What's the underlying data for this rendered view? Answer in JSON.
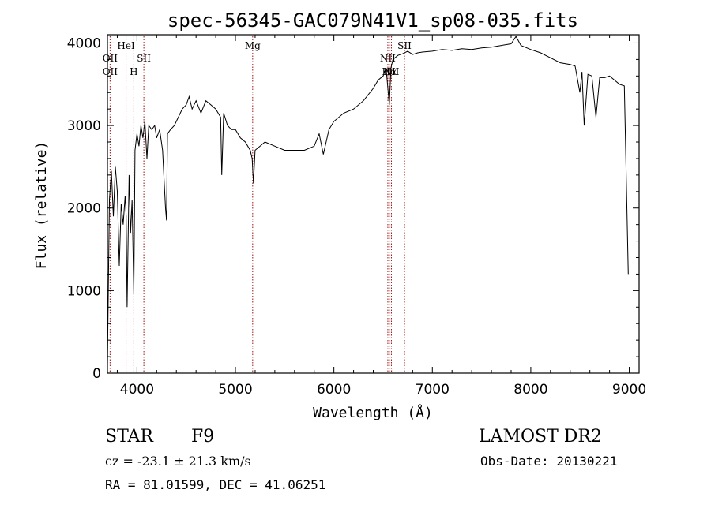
{
  "chart_data": {
    "type": "line",
    "title": "spec-56345-GAC079N41V1_sp08-035.fits",
    "xlabel": "Wavelength (Å)",
    "ylabel": "Flux (relative)",
    "xlim": [
      3700,
      9100
    ],
    "ylim": [
      0,
      4100
    ],
    "xticks": [
      4000,
      5000,
      6000,
      7000,
      8000,
      9000
    ],
    "yticks": [
      0,
      1000,
      2000,
      3000,
      4000
    ],
    "grid": false,
    "series": [
      {
        "color": "#000000",
        "x": [
          3700,
          3720,
          3740,
          3760,
          3780,
          3800,
          3820,
          3840,
          3860,
          3880,
          3890,
          3900,
          3920,
          3935,
          3950,
          3968,
          3980,
          4000,
          4020,
          4040,
          4060,
          4080,
          4101,
          4120,
          4150,
          4180,
          4200,
          4230,
          4260,
          4290,
          4300,
          4310,
          4340,
          4380,
          4420,
          4460,
          4500,
          4530,
          4560,
          4600,
          4650,
          4700,
          4750,
          4800,
          4850,
          4861,
          4880,
          4920,
          4960,
          5000,
          5050,
          5100,
          5150,
          5170,
          5183,
          5200,
          5250,
          5300,
          5400,
          5500,
          5600,
          5700,
          5800,
          5850,
          5893,
          5950,
          6000,
          6100,
          6200,
          6300,
          6400,
          6450,
          6500,
          6530,
          6563,
          6580,
          6600,
          6650,
          6700,
          6750,
          6800,
          6850,
          6900,
          7000,
          7100,
          7200,
          7300,
          7400,
          7500,
          7600,
          7700,
          7800,
          7850,
          7900,
          8000,
          8100,
          8200,
          8300,
          8400,
          8450,
          8498,
          8520,
          8542,
          8580,
          8620,
          8662,
          8700,
          8750,
          8800,
          8850,
          8900,
          8950,
          8990
        ],
        "y": [
          100,
          2100,
          2450,
          1900,
          2500,
          2200,
          1300,
          2050,
          1800,
          2150,
          1900,
          800,
          2400,
          1700,
          2100,
          950,
          2700,
          2900,
          2750,
          3000,
          2850,
          3050,
          2600,
          3000,
          2950,
          3000,
          2850,
          2950,
          2700,
          2000,
          1850,
          2900,
          2950,
          3000,
          3100,
          3200,
          3250,
          3350,
          3200,
          3300,
          3150,
          3300,
          3250,
          3200,
          3100,
          2400,
          3150,
          3000,
          2950,
          2950,
          2850,
          2800,
          2700,
          2600,
          2300,
          2700,
          2750,
          2800,
          2750,
          2700,
          2700,
          2700,
          2750,
          2900,
          2650,
          2950,
          3050,
          3150,
          3200,
          3300,
          3450,
          3550,
          3600,
          3700,
          3250,
          3700,
          3800,
          3850,
          3870,
          3900,
          3860,
          3880,
          3890,
          3900,
          3920,
          3910,
          3930,
          3920,
          3940,
          3950,
          3970,
          3990,
          4080,
          3970,
          3920,
          3880,
          3820,
          3760,
          3740,
          3720,
          3400,
          3650,
          3000,
          3620,
          3600,
          3100,
          3580,
          3580,
          3600,
          3550,
          3500,
          3480,
          1200
        ]
      }
    ],
    "line_markers": [
      {
        "label": "OII",
        "wavelength": 3727,
        "row": 1
      },
      {
        "label": "OII",
        "wavelength": 3727,
        "row": 2
      },
      {
        "label": "HeI",
        "wavelength": 3889,
        "row": 0
      },
      {
        "label": "H",
        "wavelength": 3968,
        "row": 2
      },
      {
        "label": "SII",
        "wavelength": 4070,
        "row": 1
      },
      {
        "label": "Mg",
        "wavelength": 5175,
        "row": 0
      },
      {
        "label": "NII",
        "wavelength": 6548,
        "row": 1
      },
      {
        "label": "Hα",
        "wavelength": 6563,
        "row": 2
      },
      {
        "label": "NII",
        "wavelength": 6584,
        "row": 2
      },
      {
        "label": "SII",
        "wavelength": 6717,
        "row": 0
      }
    ],
    "marker_color": "#a01010"
  },
  "info": {
    "object_class": "STAR",
    "subclass": "F9",
    "survey": "LAMOST DR2",
    "cz": "cz = -23.1 ± 21.3 km/s",
    "obs_date": "Obs-Date: 20130221",
    "radec": "RA =  81.01599, DEC =  41.06251"
  }
}
